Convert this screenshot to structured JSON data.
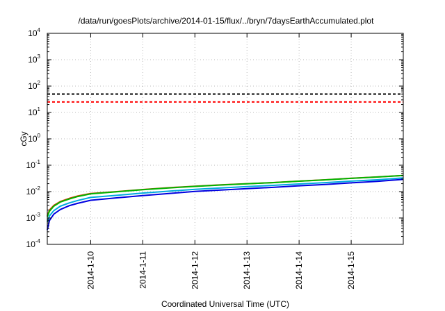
{
  "chart_data": {
    "type": "line",
    "title": "/data/run/goesPlots/archive/2014-01-15/flux/../bryn/7daysEarthAccumulated.plot",
    "xlabel": "Coordinated Universal Time (UTC)",
    "ylabel": "cGy",
    "y_scale": "log",
    "ylim": [
      0.0001,
      10000
    ],
    "y_ticks": [
      {
        "value": 0.0001,
        "base": "10",
        "exp": "-4"
      },
      {
        "value": 0.001,
        "base": "10",
        "exp": "-3"
      },
      {
        "value": 0.01,
        "base": "10",
        "exp": "-2"
      },
      {
        "value": 0.1,
        "base": "10",
        "exp": "-1"
      },
      {
        "value": 1,
        "base": "10",
        "exp": "0"
      },
      {
        "value": 10,
        "base": "10",
        "exp": "1"
      },
      {
        "value": 100,
        "base": "10",
        "exp": "2"
      },
      {
        "value": 1000,
        "base": "10",
        "exp": "3"
      },
      {
        "value": 10000,
        "base": "10",
        "exp": "4"
      }
    ],
    "x_type": "date",
    "xlim": [
      "2014-01-09T04:00",
      "2014-01-16T00:00"
    ],
    "x_ticks": [
      {
        "value": "2014-01-10T00:00",
        "label": "2014-1-10"
      },
      {
        "value": "2014-01-11T00:00",
        "label": "2014-1-11"
      },
      {
        "value": "2014-01-12T00:00",
        "label": "2014-1-12"
      },
      {
        "value": "2014-01-13T00:00",
        "label": "2014-1-13"
      },
      {
        "value": "2014-01-14T00:00",
        "label": "2014-1-14"
      },
      {
        "value": "2014-01-15T00:00",
        "label": "2014-1-15"
      }
    ],
    "grid": true,
    "thresholds": [
      {
        "value": 50,
        "color": "#000000",
        "style": "dashed"
      },
      {
        "value": 25,
        "color": "#ff0000",
        "style": "dashed"
      }
    ],
    "series": [
      {
        "color": "#d43c00",
        "x": [
          "2014-01-09T04:00",
          "2014-01-09T05:00",
          "2014-01-09T07:00",
          "2014-01-09T10:00",
          "2014-01-09T14:00",
          "2014-01-09T18:00",
          "2014-01-10T00:00",
          "2014-01-10T12:00",
          "2014-01-11T00:00",
          "2014-01-11T12:00",
          "2014-01-12T00:00",
          "2014-01-12T12:00",
          "2014-01-13T00:00",
          "2014-01-13T12:00",
          "2014-01-14T00:00",
          "2014-01-14T12:00",
          "2014-01-15T00:00",
          "2014-01-15T12:00",
          "2014-01-16T00:00"
        ],
        "values": [
          0.0012,
          0.002,
          0.003,
          0.0042,
          0.0055,
          0.0068,
          0.0085,
          0.01,
          0.012,
          0.014,
          0.016,
          0.018,
          0.02,
          0.022,
          0.025,
          0.028,
          0.032,
          0.036,
          0.041
        ]
      },
      {
        "color": "#00b400",
        "x": [
          "2014-01-09T04:00",
          "2014-01-09T05:00",
          "2014-01-09T07:00",
          "2014-01-09T10:00",
          "2014-01-09T14:00",
          "2014-01-09T18:00",
          "2014-01-10T00:00",
          "2014-01-10T12:00",
          "2014-01-11T00:00",
          "2014-01-11T12:00",
          "2014-01-12T00:00",
          "2014-01-12T12:00",
          "2014-01-13T00:00",
          "2014-01-13T12:00",
          "2014-01-14T00:00",
          "2014-01-14T12:00",
          "2014-01-15T00:00",
          "2014-01-15T12:00",
          "2014-01-16T00:00"
        ],
        "values": [
          0.0011,
          0.0018,
          0.0028,
          0.004,
          0.0052,
          0.0065,
          0.0082,
          0.0098,
          0.0118,
          0.0138,
          0.0158,
          0.0178,
          0.0198,
          0.0218,
          0.0248,
          0.0278,
          0.0318,
          0.0358,
          0.0408
        ]
      },
      {
        "color": "#00aadd",
        "x": [
          "2014-01-09T04:00",
          "2014-01-09T05:00",
          "2014-01-09T07:00",
          "2014-01-09T10:00",
          "2014-01-09T14:00",
          "2014-01-09T18:00",
          "2014-01-10T00:00",
          "2014-01-10T12:00",
          "2014-01-11T00:00",
          "2014-01-11T12:00",
          "2014-01-12T00:00",
          "2014-01-12T12:00",
          "2014-01-13T00:00",
          "2014-01-13T12:00",
          "2014-01-14T00:00",
          "2014-01-14T12:00",
          "2014-01-15T00:00",
          "2014-01-15T12:00",
          "2014-01-16T00:00"
        ],
        "values": [
          0.0007,
          0.0012,
          0.0019,
          0.0028,
          0.0037,
          0.0046,
          0.006,
          0.0072,
          0.0088,
          0.0104,
          0.0122,
          0.0138,
          0.0155,
          0.0172,
          0.0195,
          0.0218,
          0.025,
          0.028,
          0.033
        ]
      },
      {
        "color": "#0000e0",
        "x": [
          "2014-01-09T04:00",
          "2014-01-09T05:00",
          "2014-01-09T07:00",
          "2014-01-09T10:00",
          "2014-01-09T14:00",
          "2014-01-09T18:00",
          "2014-01-10T00:00",
          "2014-01-10T12:00",
          "2014-01-11T00:00",
          "2014-01-11T12:00",
          "2014-01-12T00:00",
          "2014-01-12T12:00",
          "2014-01-13T00:00",
          "2014-01-13T12:00",
          "2014-01-14T00:00",
          "2014-01-14T12:00",
          "2014-01-15T00:00",
          "2014-01-15T12:00",
          "2014-01-16T00:00"
        ],
        "values": [
          0.00035,
          0.0008,
          0.0014,
          0.0021,
          0.0029,
          0.0036,
          0.0047,
          0.0058,
          0.0071,
          0.0085,
          0.0101,
          0.0115,
          0.013,
          0.0145,
          0.0166,
          0.0186,
          0.0215,
          0.0245,
          0.029
        ]
      }
    ]
  }
}
